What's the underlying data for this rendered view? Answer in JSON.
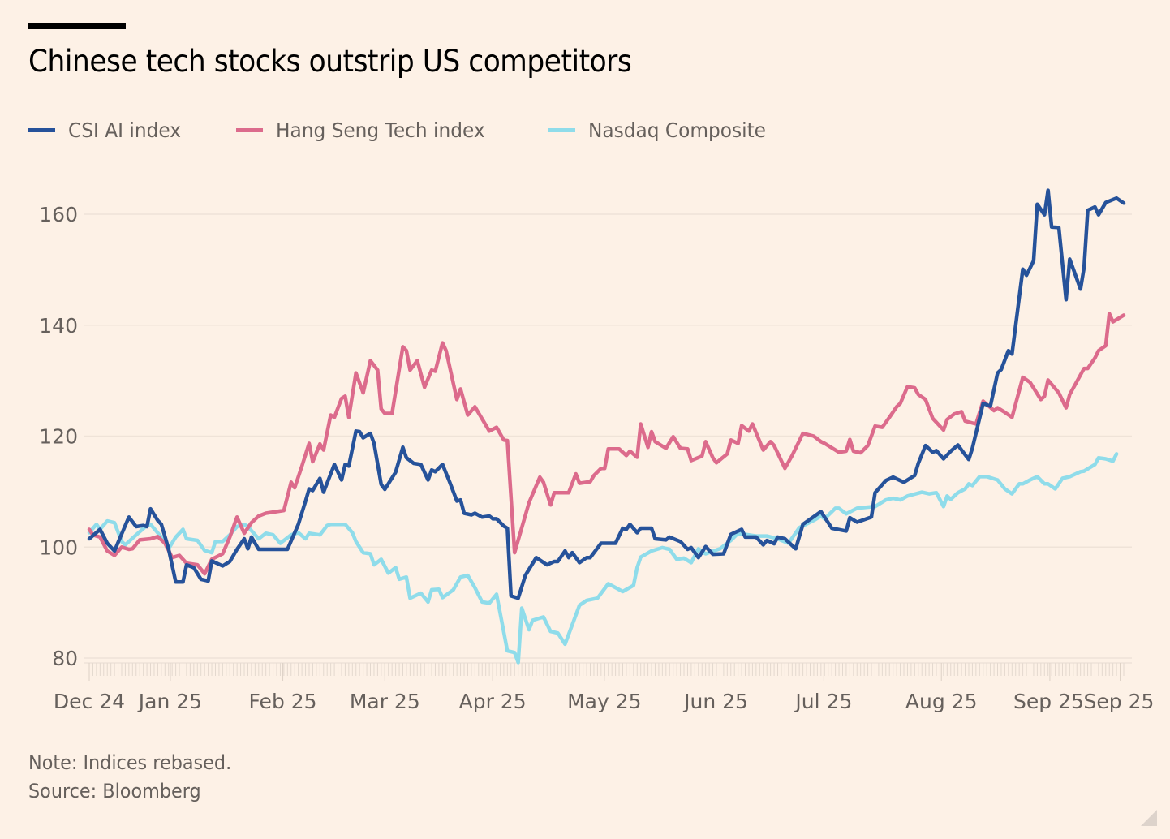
{
  "header": {
    "title": "Chinese tech stocks outstrip US competitors"
  },
  "footer": {
    "note": "Note: Indices rebased.",
    "source": "Source: Bloomberg"
  },
  "colors": {
    "background": "#fdf1e6",
    "csi_ai": "#26529a",
    "hang_seng_tech": "#dc6b8c",
    "nasdaq": "#8fdcea",
    "gridline": "#efe3d8",
    "text": "#66605c"
  },
  "chart_data": {
    "type": "line",
    "title": "Chinese tech stocks outstrip US competitors",
    "xlabel": "",
    "ylabel": "",
    "x_units": "trading-period day index (0 = start of series, Dec 24)",
    "xlim": [
      0,
      287
    ],
    "ylim": [
      80,
      160
    ],
    "grid": true,
    "legend_position": "top-left",
    "y_ticks": [
      80,
      100,
      120,
      140,
      160
    ],
    "x_ticks": [
      {
        "x": 0,
        "label": "Dec 24"
      },
      {
        "x": 22.5,
        "label": "Jan 25"
      },
      {
        "x": 53.7,
        "label": "Feb 25"
      },
      {
        "x": 82,
        "label": "Mar 25"
      },
      {
        "x": 111.9,
        "label": "Apr 25"
      },
      {
        "x": 142.9,
        "label": "May 25"
      },
      {
        "x": 173.9,
        "label": "Jun 25"
      },
      {
        "x": 203.8,
        "label": "Jul 25"
      },
      {
        "x": 236.4,
        "label": "Aug 25"
      },
      {
        "x": 266.5,
        "label": "Sep 25"
      },
      {
        "x": 286,
        "label": "Sep 25"
      }
    ],
    "series": [
      {
        "name": "CSI AI index",
        "color": "#26529a",
        "x": [
          0,
          3,
          5,
          7,
          10,
          11,
          13,
          15,
          16,
          17,
          19,
          20,
          22,
          24,
          26,
          27,
          29,
          31,
          33,
          34,
          37,
          39,
          41,
          43,
          44,
          45,
          47,
          55,
          58,
          60,
          61,
          62,
          64,
          65,
          68,
          70,
          71,
          72,
          74,
          75,
          76,
          78,
          79,
          81,
          82,
          85,
          87,
          88,
          90,
          92,
          94,
          95,
          96,
          98,
          100,
          102,
          103,
          104,
          106,
          107,
          109,
          111,
          112,
          113,
          115,
          116,
          117,
          119,
          121,
          124,
          127,
          129,
          130,
          132,
          133,
          134,
          136,
          138,
          139,
          142,
          146,
          148,
          149,
          150,
          152,
          153,
          156,
          157,
          160,
          161,
          164,
          166,
          167,
          169,
          171,
          173,
          176,
          178,
          181,
          182,
          185,
          187,
          188,
          190,
          191,
          193,
          196,
          198,
          203,
          206,
          210,
          211,
          213,
          217,
          218,
          221,
          223,
          226,
          229,
          230,
          232,
          234,
          235,
          237,
          239,
          241,
          242,
          244,
          245,
          248,
          250,
          252,
          253,
          255,
          256,
          259,
          260,
          262,
          263,
          265,
          266,
          267,
          269,
          271,
          272,
          275,
          276,
          277,
          279,
          280,
          282,
          285,
          287
        ],
        "values": [
          101.5,
          103.2,
          100.7,
          99.3,
          103.9,
          105.4,
          103.7,
          103.9,
          103.7,
          106.9,
          104.8,
          104.1,
          99.7,
          93.7,
          93.7,
          96.8,
          96.3,
          94.2,
          93.9,
          97.5,
          96.6,
          97.4,
          99.6,
          101.5,
          99.7,
          101.8,
          99.6,
          99.6,
          104.1,
          108.3,
          110.5,
          110.2,
          112.4,
          109.9,
          114.9,
          112.1,
          114.9,
          114.6,
          120.9,
          120.8,
          119.7,
          120.5,
          118.7,
          111.3,
          110.4,
          113.5,
          118.0,
          116.1,
          115.1,
          114.9,
          112.1,
          113.9,
          113.6,
          114.9,
          111.7,
          108.3,
          108.5,
          106.1,
          105.8,
          106.1,
          105.4,
          105.6,
          105.1,
          105.1,
          103.8,
          103.4,
          91.2,
          90.8,
          94.9,
          98.1,
          96.8,
          97.4,
          97.4,
          99.3,
          98.1,
          99.0,
          97.2,
          98.1,
          98.1,
          100.7,
          100.7,
          103.4,
          103.2,
          104.1,
          102.6,
          103.4,
          103.4,
          101.5,
          101.3,
          101.8,
          101.0,
          99.6,
          99.9,
          98.1,
          100.1,
          98.7,
          98.8,
          102.3,
          103.2,
          101.8,
          101.8,
          100.4,
          101.2,
          100.6,
          101.8,
          101.5,
          99.7,
          104.1,
          106.4,
          103.4,
          102.9,
          105.3,
          104.5,
          105.4,
          109.8,
          112.0,
          112.6,
          111.7,
          112.9,
          115.1,
          118.3,
          117.1,
          117.4,
          115.9,
          117.3,
          118.4,
          117.5,
          115.8,
          117.8,
          125.9,
          125.4,
          131.4,
          132.0,
          135.4,
          134.8,
          150.1,
          149.0,
          151.6,
          161.8,
          159.9,
          164.3,
          157.7,
          157.6,
          144.6,
          151.9,
          146.5,
          150.4,
          160.7,
          161.3,
          159.9,
          162.1,
          162.9,
          162.0
        ]
      },
      {
        "name": "Hang Seng Tech index",
        "color": "#dc6b8c",
        "x": [
          0,
          1,
          3,
          5,
          7,
          9,
          11,
          12,
          14,
          17,
          19,
          21,
          23,
          25,
          27,
          30,
          32,
          34,
          37,
          39,
          41,
          43,
          45,
          47,
          49,
          54,
          56,
          57,
          59,
          61,
          62,
          64,
          65,
          67,
          68,
          70,
          71,
          72,
          74,
          76,
          78,
          80,
          81,
          82,
          84,
          87,
          88,
          89,
          91,
          93,
          95,
          96,
          98,
          99,
          102,
          103,
          105,
          107,
          111,
          113,
          115,
          116,
          118,
          122,
          125,
          126,
          128,
          129,
          133,
          135,
          136,
          139,
          140,
          142,
          143,
          144,
          147,
          149,
          150,
          152,
          153,
          155,
          156,
          157,
          160,
          162,
          164,
          166,
          167,
          170,
          171,
          173,
          174,
          177,
          178,
          180,
          181,
          183,
          184,
          187,
          189,
          190,
          193,
          195,
          198,
          201,
          203,
          204,
          208,
          210,
          211,
          212,
          214,
          216,
          218,
          220,
          222,
          224,
          225,
          227,
          229,
          230,
          232,
          234,
          237,
          238,
          240,
          242,
          243,
          246,
          248,
          251,
          252,
          254,
          256,
          259,
          261,
          264,
          265,
          266,
          269,
          271,
          272,
          276,
          277,
          279,
          280,
          282,
          283,
          284,
          287
        ],
        "values": [
          103.2,
          102.2,
          101.8,
          99.3,
          98.5,
          100.0,
          99.6,
          99.7,
          101.3,
          101.5,
          101.9,
          100.7,
          98.1,
          98.5,
          97.1,
          96.8,
          95.2,
          97.8,
          98.8,
          101.8,
          105.4,
          102.5,
          104.4,
          105.6,
          106.1,
          106.6,
          111.7,
          110.7,
          114.6,
          118.7,
          115.4,
          118.6,
          117.5,
          123.8,
          123.4,
          126.8,
          127.2,
          123.4,
          131.4,
          127.8,
          133.6,
          131.9,
          124.9,
          124.1,
          124.1,
          136.1,
          135.4,
          131.9,
          133.6,
          128.8,
          131.9,
          131.7,
          136.8,
          135.4,
          126.6,
          128.5,
          123.8,
          125.3,
          120.9,
          121.6,
          119.3,
          119.2,
          99.0,
          108.0,
          112.6,
          111.7,
          107.6,
          109.8,
          109.8,
          113.2,
          111.5,
          111.8,
          112.9,
          114.2,
          114.2,
          117.7,
          117.7,
          116.5,
          117.3,
          116.2,
          122.2,
          118.0,
          120.8,
          119.0,
          117.8,
          119.9,
          117.8,
          117.7,
          115.6,
          116.4,
          119.0,
          116.1,
          115.2,
          116.8,
          119.3,
          118.7,
          121.9,
          120.9,
          122.2,
          117.5,
          119.0,
          118.3,
          114.2,
          116.5,
          120.5,
          120.0,
          119.0,
          118.7,
          117.1,
          117.3,
          119.4,
          117.3,
          117.0,
          118.3,
          121.8,
          121.6,
          123.4,
          125.3,
          125.9,
          128.9,
          128.7,
          127.5,
          126.6,
          123.2,
          121.1,
          123.0,
          124.0,
          124.4,
          122.7,
          122.2,
          126.3,
          124.6,
          125.1,
          124.3,
          123.4,
          130.6,
          129.7,
          126.6,
          127.2,
          130.1,
          127.8,
          125.1,
          127.5,
          132.2,
          132.2,
          134.1,
          135.4,
          136.3,
          142.1,
          140.6,
          141.8
        ]
      },
      {
        "name": "Nasdaq Composite",
        "color": "#8fdcea",
        "x": [
          0,
          2,
          3,
          5,
          7,
          9,
          10,
          13,
          16,
          17,
          20,
          22,
          24,
          26,
          27,
          30,
          32,
          34,
          35,
          37,
          39,
          41,
          43,
          44,
          47,
          49,
          51,
          53,
          56,
          58,
          60,
          61,
          64,
          66,
          67,
          71,
          73,
          74,
          76,
          78,
          79,
          81,
          83,
          85,
          86,
          88,
          89,
          92,
          94,
          95,
          97,
          98,
          101,
          103,
          105,
          107,
          109,
          111,
          113,
          116,
          118,
          119,
          120,
          122,
          123,
          126,
          128,
          130,
          132,
          136,
          138,
          141,
          144,
          148,
          151,
          152,
          153,
          156,
          159,
          161,
          163,
          165,
          167,
          169,
          171,
          175,
          178,
          180,
          185,
          188,
          191,
          194,
          197,
          201,
          203,
          204,
          207,
          208,
          210,
          213,
          216,
          218,
          221,
          223,
          225,
          227,
          231,
          233,
          235,
          237,
          238,
          239,
          241,
          243,
          244,
          245,
          247,
          249,
          252,
          254,
          256,
          258,
          259,
          261,
          263,
          265,
          266,
          268,
          270,
          272,
          275,
          276,
          279,
          280,
          282,
          284,
          285
        ],
        "values": [
          102.6,
          104.1,
          103.2,
          104.7,
          104.4,
          101.0,
          100.4,
          102.2,
          103.9,
          104.1,
          101.8,
          99.7,
          101.8,
          103.2,
          101.5,
          101.2,
          99.4,
          99.0,
          101.0,
          101.0,
          102.2,
          103.7,
          104.1,
          103.7,
          101.5,
          102.5,
          102.2,
          100.7,
          102.2,
          102.6,
          101.5,
          102.5,
          102.2,
          103.9,
          104.1,
          104.1,
          102.6,
          101.0,
          99.0,
          98.8,
          96.8,
          97.8,
          95.3,
          96.3,
          94.2,
          94.6,
          90.8,
          91.7,
          90.1,
          92.3,
          92.4,
          90.9,
          92.3,
          94.6,
          94.9,
          92.7,
          90.1,
          89.9,
          91.5,
          81.3,
          81.0,
          79.2,
          89.0,
          85.1,
          86.8,
          87.4,
          84.8,
          84.5,
          82.5,
          89.5,
          90.4,
          90.8,
          93.4,
          92.0,
          93.1,
          96.3,
          98.2,
          99.3,
          99.9,
          99.6,
          97.8,
          98.0,
          97.2,
          99.7,
          98.8,
          99.7,
          101.2,
          102.5,
          102.0,
          102.0,
          101.5,
          100.7,
          103.5,
          104.8,
          105.6,
          105.1,
          107.0,
          107.0,
          106.0,
          107.0,
          107.2,
          107.3,
          108.5,
          108.8,
          108.5,
          109.2,
          109.9,
          109.6,
          109.8,
          107.3,
          109.2,
          108.6,
          109.8,
          110.5,
          111.4,
          111.1,
          112.7,
          112.7,
          112.1,
          110.5,
          109.6,
          111.4,
          111.4,
          112.1,
          112.7,
          111.4,
          111.4,
          110.5,
          112.4,
          112.7,
          113.6,
          113.7,
          114.9,
          116.1,
          115.9,
          115.5,
          116.8
        ]
      }
    ]
  }
}
